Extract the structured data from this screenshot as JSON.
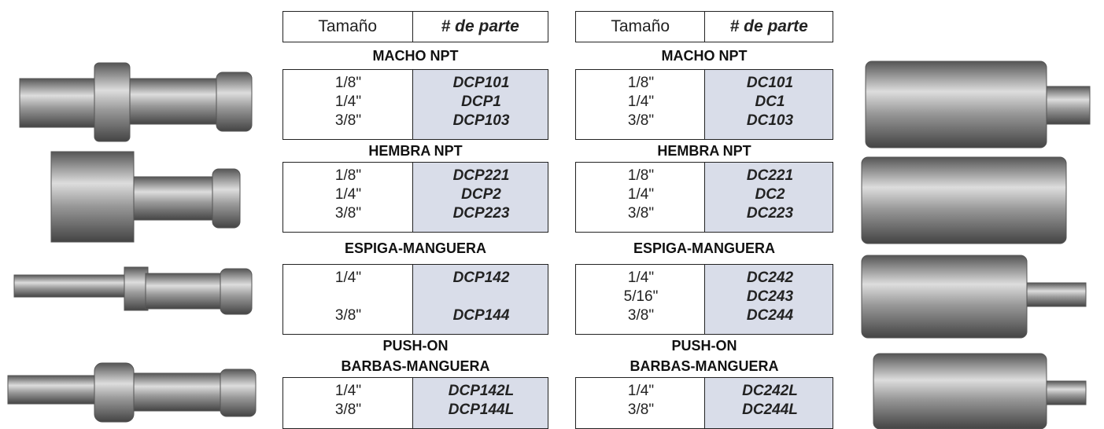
{
  "tables": [
    {
      "header": {
        "size": "Tamaño",
        "part": "# de parte"
      },
      "sections": [
        {
          "title": [
            "MACHO NPT"
          ],
          "rows": [
            [
              "1/8\"",
              "DCP101"
            ],
            [
              "1/4\"",
              "DCP1"
            ],
            [
              "3/8\"",
              "DCP103"
            ]
          ]
        },
        {
          "title": [
            "HEMBRA NPT"
          ],
          "rows": [
            [
              "1/8\"",
              "DCP221"
            ],
            [
              "1/4\"",
              "DCP2"
            ],
            [
              "3/8\"",
              "DCP223"
            ]
          ]
        },
        {
          "title": [
            "ESPIGA-MANGUERA"
          ],
          "rows": [
            [
              "1/4\"",
              "DCP142"
            ],
            null,
            [
              "3/8\"",
              "DCP144"
            ]
          ]
        },
        {
          "title": [
            "PUSH-ON",
            "BARBAS-MANGUERA"
          ],
          "rows": [
            [
              "1/4\"",
              "DCP142L"
            ],
            [
              "3/8\"",
              "DCP144L"
            ]
          ]
        }
      ]
    },
    {
      "header": {
        "size": "Tamaño",
        "part": "# de parte"
      },
      "sections": [
        {
          "title": [
            "MACHO NPT"
          ],
          "rows": [
            [
              "1/8\"",
              "DC101"
            ],
            [
              "1/4\"",
              "DC1"
            ],
            [
              "3/8\"",
              "DC103"
            ]
          ]
        },
        {
          "title": [
            "HEMBRA NPT"
          ],
          "rows": [
            [
              "1/8\"",
              "DC221"
            ],
            [
              "1/4\"",
              "DC2"
            ],
            [
              "3/8\"",
              "DC223"
            ]
          ]
        },
        {
          "title": [
            "ESPIGA-MANGUERA"
          ],
          "rows": [
            [
              "1/4\"",
              "DC242"
            ],
            [
              "5/16\"",
              "DC243"
            ],
            [
              "3/8\"",
              "DC244"
            ]
          ]
        },
        {
          "title": [
            "PUSH-ON",
            "BARBAS-MANGUERA"
          ],
          "rows": [
            [
              "1/4\"",
              "DC242L"
            ],
            [
              "3/8\"",
              "DC244L"
            ]
          ]
        }
      ]
    }
  ]
}
